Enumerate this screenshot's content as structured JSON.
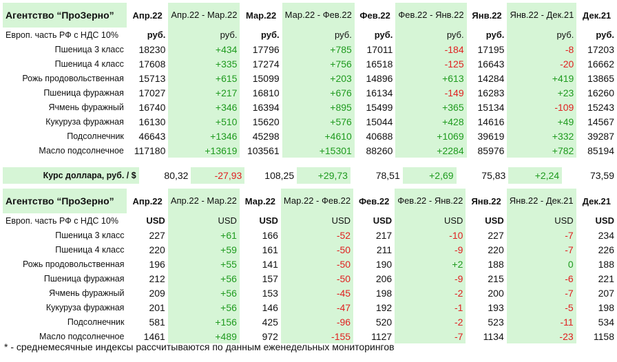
{
  "columns": {
    "agency": "Агентство “ПроЗерно”",
    "c1": "Апр.22",
    "c2": "Апр.22 - Мар.22",
    "c3": "Мар.22",
    "c4": "Мар.22 - Фев.22",
    "c5": "Фев.22",
    "c6": "Фев.22 - Янв.22",
    "c7": "Янв.22",
    "c8": "Янв.22 - Дек.21",
    "c9": "Дек.21"
  },
  "rub_table": {
    "unit_label": "Европ. часть РФ с НДС 10%",
    "unit": "руб.",
    "rows": [
      {
        "name": "Пшеница 3 класс",
        "v": [
          "18230",
          "+434",
          "17796",
          "+785",
          "17011",
          "-184",
          "17195",
          "-8",
          "17203"
        ]
      },
      {
        "name": "Пшеница 4 класс",
        "v": [
          "17608",
          "+335",
          "17274",
          "+756",
          "16518",
          "-125",
          "16643",
          "-20",
          "16662"
        ]
      },
      {
        "name": "Рожь продовольственная",
        "v": [
          "15713",
          "+615",
          "15099",
          "+203",
          "14896",
          "+613",
          "14284",
          "+419",
          "13865"
        ]
      },
      {
        "name": "Пшеница фуражная",
        "v": [
          "17027",
          "+217",
          "16810",
          "+676",
          "16134",
          "-149",
          "16283",
          "+23",
          "16260"
        ]
      },
      {
        "name": "Ячмень фуражный",
        "v": [
          "16740",
          "+346",
          "16394",
          "+895",
          "15499",
          "+365",
          "15134",
          "-109",
          "15243"
        ]
      },
      {
        "name": "Кукуруза фуражная",
        "v": [
          "16130",
          "+510",
          "15620",
          "+576",
          "15044",
          "+428",
          "14616",
          "+49",
          "14567"
        ]
      },
      {
        "name": "Подсолнечник",
        "v": [
          "46643",
          "+1346",
          "45298",
          "+4610",
          "40688",
          "+1069",
          "39619",
          "+332",
          "39287"
        ]
      },
      {
        "name": "Масло подсолнечное",
        "v": [
          "117180",
          "+13619",
          "103561",
          "+15301",
          "88260",
          "+2284",
          "85976",
          "+782",
          "85194"
        ]
      }
    ]
  },
  "rate": {
    "label": "Курс доллара, руб. / $",
    "v": [
      "80,32",
      "-27,93",
      "108,25",
      "+29,73",
      "78,51",
      "+2,69",
      "75,83",
      "+2,24",
      "73,59"
    ]
  },
  "usd_table": {
    "unit_label": "Европ. часть РФ с НДС 10%",
    "unit": "USD",
    "rows": [
      {
        "name": "Пшеница 3 класс",
        "v": [
          "227",
          "+61",
          "166",
          "-52",
          "217",
          "-10",
          "227",
          "-7",
          "234"
        ]
      },
      {
        "name": "Пшеница 4 класс",
        "v": [
          "220",
          "+59",
          "161",
          "-50",
          "211",
          "-9",
          "220",
          "-7",
          "226"
        ]
      },
      {
        "name": "Рожь продовольственная",
        "v": [
          "196",
          "+55",
          "141",
          "-50",
          "190",
          "+2",
          "188",
          "0",
          "188"
        ]
      },
      {
        "name": "Пшеница фуражная",
        "v": [
          "212",
          "+56",
          "157",
          "-50",
          "206",
          "-9",
          "215",
          "-6",
          "221"
        ]
      },
      {
        "name": "Ячмень фуражный",
        "v": [
          "209",
          "+56",
          "153",
          "-45",
          "198",
          "-2",
          "200",
          "-7",
          "207"
        ]
      },
      {
        "name": "Кукуруза фуражная",
        "v": [
          "201",
          "+56",
          "146",
          "-47",
          "192",
          "-1",
          "193",
          "-5",
          "198"
        ]
      },
      {
        "name": "Подсолнечник",
        "v": [
          "581",
          "+156",
          "425",
          "-96",
          "520",
          "-2",
          "523",
          "-11",
          "534"
        ]
      },
      {
        "name": "Масло подсолнечное",
        "v": [
          "1461",
          "+489",
          "972",
          "-155",
          "1127",
          "-7",
          "1134",
          "-23",
          "1158"
        ]
      }
    ]
  },
  "footnote": "* - среднемесячные индексы рассчитываются по данным еженедельных мониторингов",
  "colors": {
    "delta_bg": "#d6f5d6",
    "positive": "#1e9a1e",
    "negative": "#e02020"
  }
}
